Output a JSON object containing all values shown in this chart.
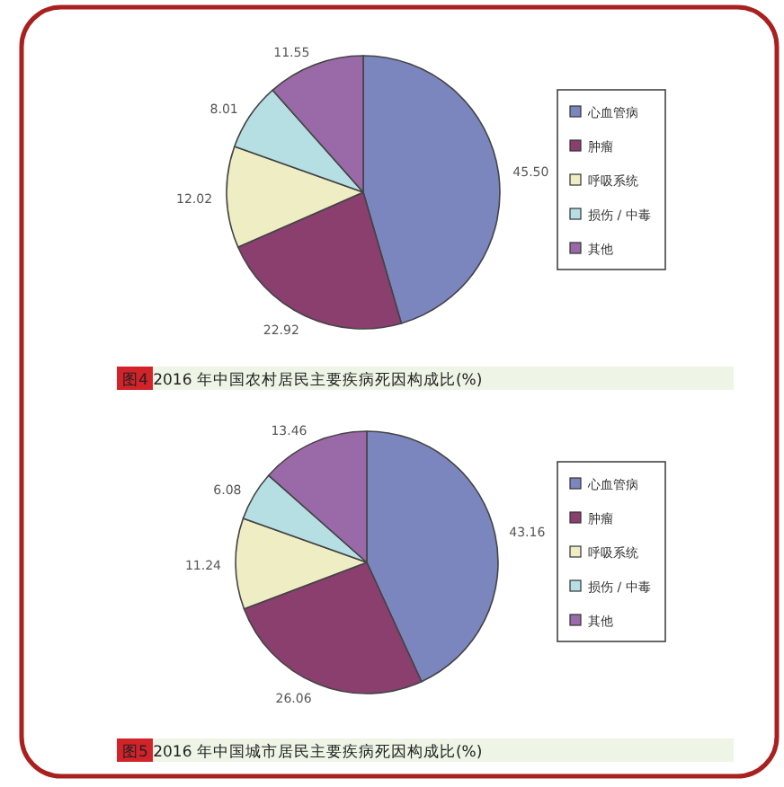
{
  "chart_data": [
    {
      "type": "pie",
      "title": "图4 2016 年中国农村居民主要疾病死因构成比(%)",
      "categories": [
        "心血管病",
        "肿瘤",
        "呼吸系统",
        "损伤 / 中毒",
        "其他"
      ],
      "values": [
        45.5,
        22.92,
        12.02,
        8.01,
        11.55
      ],
      "value_labels": [
        "45.50",
        "22.92",
        "12.02",
        "8.01",
        "11.55"
      ],
      "colors": [
        "#7b86bf",
        "#8a3f6e",
        "#efedc4",
        "#b6dfe4",
        "#9a6aa8"
      ],
      "legend": "right"
    },
    {
      "type": "pie",
      "title": "图5 2016 年中国城市居民主要疾病死因构成比(%)",
      "categories": [
        "心血管病",
        "肿瘤",
        "呼吸系统",
        "损伤 / 中毒",
        "其他"
      ],
      "values": [
        43.16,
        26.06,
        11.24,
        6.08,
        13.46
      ],
      "value_labels": [
        "43.16",
        "26.06",
        "11.24",
        "6.08",
        "13.46"
      ],
      "colors": [
        "#7b86bf",
        "#8a3f6e",
        "#efedc4",
        "#b6dfe4",
        "#9a6aa8"
      ],
      "legend": "right"
    }
  ]
}
